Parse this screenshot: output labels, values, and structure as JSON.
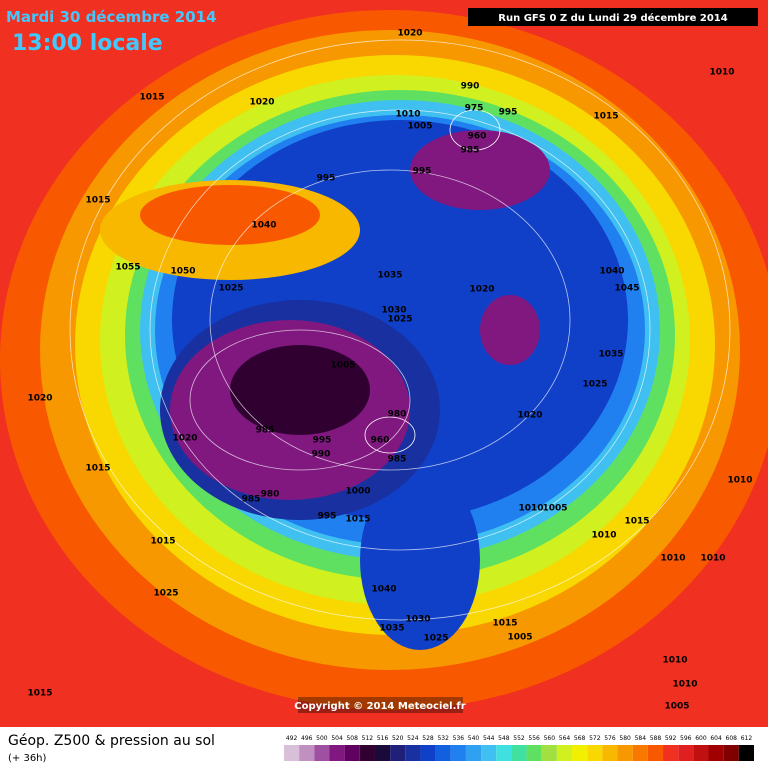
{
  "header": {
    "date": "Mardi 30 décembre 2014",
    "time": "13:00 locale",
    "run": "Run GFS 0 Z du Lundi 29 décembre 2014"
  },
  "map": {
    "isobar_labels": [
      1020,
      1010,
      1015,
      1020,
      990,
      975,
      995,
      1010,
      1005,
      960,
      985,
      1015,
      995,
      995,
      1015,
      1040,
      1055,
      1050,
      1025,
      1035,
      1020,
      1040,
      1045,
      1030,
      1025,
      1005,
      1035,
      1025,
      1020,
      980,
      1020,
      985,
      1020,
      995,
      960,
      990,
      985,
      1015,
      1010,
      1000,
      985,
      980,
      1010,
      1005,
      995,
      1015,
      1015,
      1010,
      1015,
      1010,
      1010,
      1040,
      1025,
      1030,
      1015,
      1005,
      1035,
      1025,
      1010,
      1010,
      1015,
      1005
    ]
  },
  "copyright": "Copyright © 2014 Meteociel.fr",
  "legend": {
    "title": "Géop. Z500 & pression au sol",
    "lead": "(+ 36h)",
    "scale": [
      492,
      496,
      500,
      504,
      508,
      512,
      516,
      520,
      524,
      528,
      532,
      536,
      540,
      544,
      548,
      552,
      556,
      560,
      564,
      568,
      572,
      576,
      580,
      584,
      588,
      592,
      596,
      600,
      604,
      608,
      612
    ],
    "colors": [
      "#d8c0d8",
      "#c090c0",
      "#a050a0",
      "#801880",
      "#600060",
      "#300030",
      "#1a0a3a",
      "#20207a",
      "#1830a0",
      "#1040c8",
      "#1060e0",
      "#2080f0",
      "#30a0f0",
      "#40c0f0",
      "#40e0e0",
      "#40e0a0",
      "#60e060",
      "#a0e040",
      "#d0f020",
      "#f0f000",
      "#f8d800",
      "#f8b800",
      "#f89800",
      "#f87800",
      "#f85800",
      "#f03020",
      "#e02020",
      "#c01010",
      "#a00000",
      "#800000",
      "#000000"
    ]
  }
}
